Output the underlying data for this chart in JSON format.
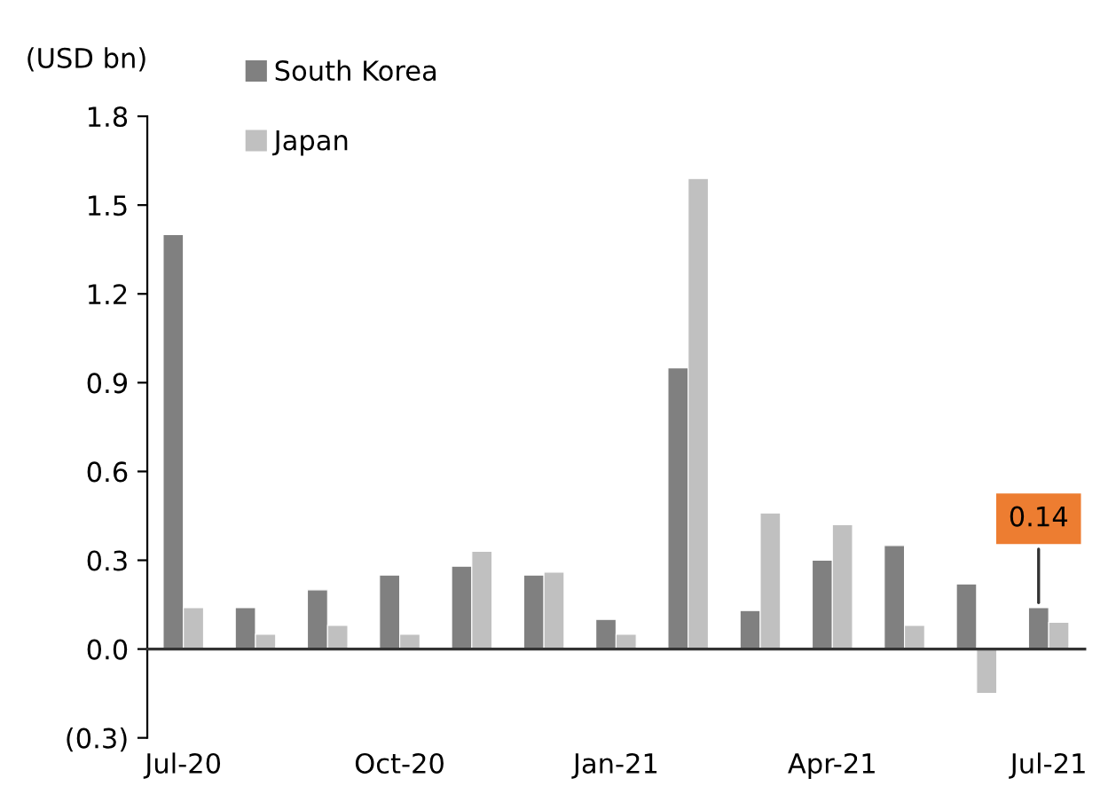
{
  "chart_data": {
    "type": "bar",
    "ylabel": "(USD bn)",
    "categories": [
      "Jul-20",
      null,
      null,
      "Oct-20",
      null,
      null,
      "Jan-21",
      null,
      null,
      "Apr-21",
      null,
      null,
      "Jul-21"
    ],
    "series": [
      {
        "name": "South Korea",
        "color": "#808080",
        "values": [
          1.4,
          0.14,
          0.2,
          0.25,
          0.28,
          0.25,
          0.1,
          0.95,
          0.13,
          0.3,
          0.35,
          0.22,
          0.14
        ]
      },
      {
        "name": "Japan",
        "color": "#c0c0c0",
        "values": [
          0.14,
          0.05,
          0.08,
          0.05,
          0.33,
          0.26,
          0.05,
          1.59,
          0.46,
          0.42,
          0.08,
          -0.15,
          0.09
        ]
      }
    ],
    "ylim": [
      -0.3,
      1.8
    ],
    "yticks": [
      {
        "value": -0.3,
        "label": "(0.3)"
      },
      {
        "value": 0,
        "label": "0.0"
      },
      0.3,
      0.6,
      0.9,
      1.2,
      1.5,
      1.8
    ],
    "annotations": [
      {
        "text": "0.14",
        "x": "Jul-21",
        "y": 0.14
      }
    ],
    "legend": "top left"
  }
}
